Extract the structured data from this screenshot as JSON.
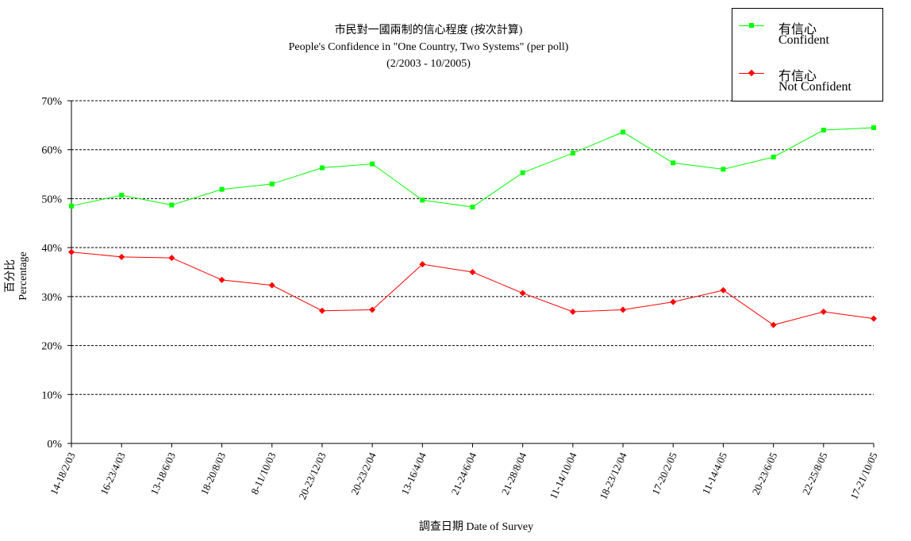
{
  "chart_data": {
    "type": "line",
    "title": "市民對一國兩制的信心程度 (按次計算)",
    "subtitle": "People's Confidence in \"One Country, Two Systems\" (per poll)",
    "period": "(2/2003 - 10/2005)",
    "xlabel": "調查日期 Date of Survey",
    "ylabel": "百分比 Percentage",
    "ylim": [
      0,
      70
    ],
    "yticks": [
      "0%",
      "10%",
      "20%",
      "30%",
      "40%",
      "50%",
      "60%",
      "70%"
    ],
    "grid": true,
    "legend_position": "top-right",
    "categories": [
      "14-18/2/03",
      "16-23/4/03",
      "13-18/6/03",
      "18-20/8/03",
      "8-11/10/03",
      "20-23/12/03",
      "20-23/2/04",
      "13-16/4/04",
      "21-24/6/04",
      "21-28/8/04",
      "11-14/10/04",
      "18-23/12/04",
      "17-20/2/05",
      "11-14/4/05",
      "20-23/6/05",
      "22-25/8/05",
      "17-21/10/05"
    ],
    "series": [
      {
        "name": "有信心",
        "name_en": "Confident",
        "color": "#00ff00",
        "marker": "square",
        "values": [
          48.5,
          50.7,
          48.7,
          51.9,
          53.0,
          56.3,
          57.1,
          49.7,
          48.3,
          55.3,
          59.3,
          63.6,
          57.3,
          56.0,
          58.5,
          64.0,
          64.5
        ]
      },
      {
        "name": "冇信心",
        "name_en": "Not Confident",
        "color": "#ff0000",
        "marker": "diamond",
        "values": [
          39.1,
          38.1,
          37.9,
          33.4,
          32.3,
          27.1,
          27.3,
          36.6,
          35.0,
          30.7,
          26.9,
          27.3,
          28.9,
          31.3,
          24.2,
          26.9,
          25.5
        ]
      }
    ]
  }
}
